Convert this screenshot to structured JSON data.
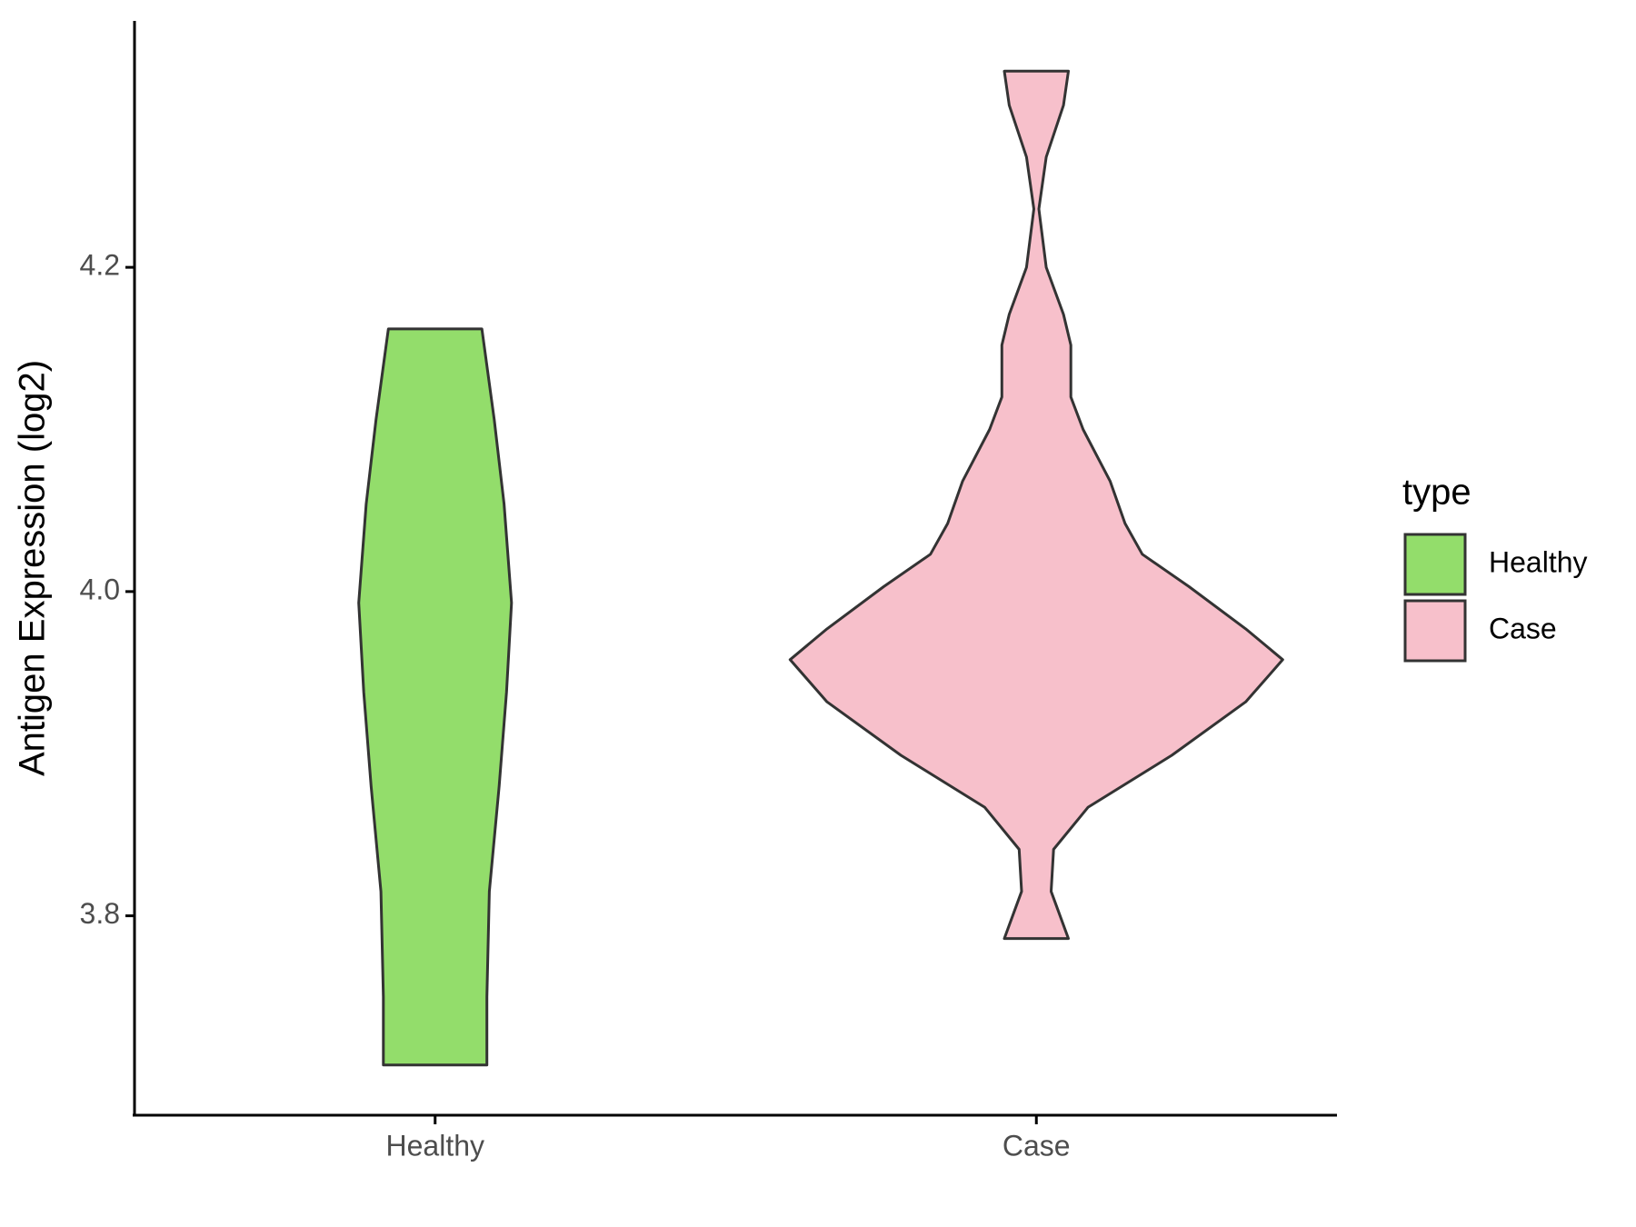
{
  "chart_data": {
    "type": "violin",
    "ylabel": "Antigen Expression (log2)",
    "categories": [
      "Healthy",
      "Case"
    ],
    "ylim": [
      3.677,
      4.352
    ],
    "yticks": [
      {
        "value": 3.8,
        "label": "3.8"
      },
      {
        "value": 4.0,
        "label": "4.0"
      },
      {
        "value": 4.2,
        "label": "4.2"
      }
    ],
    "legend_title": "type",
    "legend_position": "right",
    "series": [
      {
        "name": "Healthy",
        "color": "#93dd6b",
        "y": [
          4.162,
          4.106,
          4.054,
          3.993,
          3.938,
          3.88,
          3.815,
          3.75,
          3.708
        ],
        "density": [
          0.19,
          0.24,
          0.28,
          0.31,
          0.29,
          0.26,
          0.22,
          0.21,
          0.21
        ]
      },
      {
        "name": "Case",
        "color": "#f7c0cb",
        "y": [
          4.321,
          4.3,
          4.268,
          4.236,
          4.2,
          4.171,
          4.152,
          4.12,
          4.1,
          4.068,
          4.042,
          4.023,
          4.003,
          3.977,
          3.958,
          3.932,
          3.899,
          3.867,
          3.841,
          3.815,
          3.786
        ],
        "density": [
          0.13,
          0.11,
          0.04,
          0.01,
          0.04,
          0.11,
          0.14,
          0.14,
          0.19,
          0.3,
          0.36,
          0.43,
          0.62,
          0.85,
          1.0,
          0.85,
          0.55,
          0.21,
          0.07,
          0.06,
          0.13
        ]
      }
    ]
  }
}
